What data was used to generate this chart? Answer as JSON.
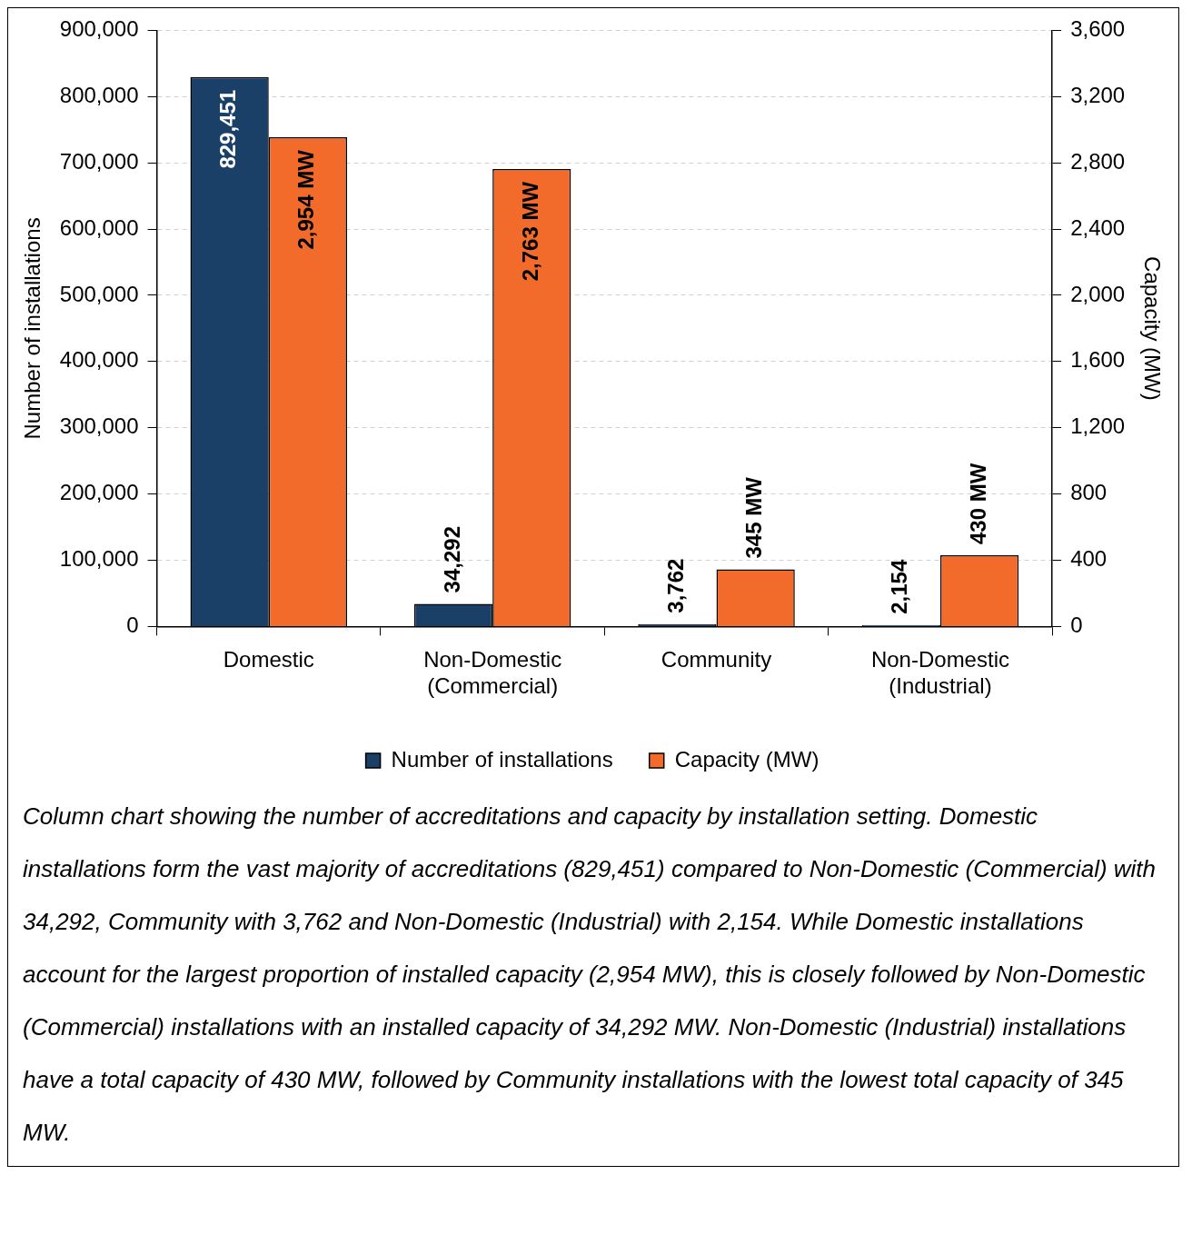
{
  "chart_data": {
    "type": "bar",
    "categories": [
      "Domestic",
      "Non-Domestic (Commercial)",
      "Community",
      "Non-Domestic (Industrial)"
    ],
    "series": [
      {
        "name": "Number of installations",
        "color": "#1a4068",
        "values": [
          829451,
          34292,
          3762,
          2154
        ],
        "value_labels": [
          "829,451",
          "34,292",
          "3,762",
          "2,154"
        ]
      },
      {
        "name": "Capacity (MW)",
        "color": "#f26b2a",
        "axis": "y2",
        "values": [
          2954,
          2763,
          345,
          430
        ],
        "value_labels": [
          "2,954 MW",
          "2,763 MW",
          "345 MW",
          "430 MW"
        ]
      }
    ],
    "ylabel": "Number of installations",
    "y2label": "Capacity (MW)",
    "ylim": [
      0,
      900000
    ],
    "yticks": [
      0,
      {
        "value": 100000,
        "label": "100,000"
      },
      {
        "value": 200000,
        "label": "200,000"
      },
      {
        "value": 300000,
        "label": "300,000"
      },
      {
        "value": 400000,
        "label": "400,000"
      },
      {
        "value": 500000,
        "label": "500,000"
      },
      {
        "value": 600000,
        "label": "600,000"
      },
      {
        "value": 700000,
        "label": "700,000"
      },
      {
        "value": 800000,
        "label": "800,000"
      },
      {
        "value": 900000,
        "label": "900,000"
      }
    ],
    "y2lim": [
      0,
      3600
    ],
    "y2ticks": [
      0,
      400,
      800,
      {
        "value": 1200,
        "label": "1,200"
      },
      {
        "value": 1600,
        "label": "1,600"
      },
      {
        "value": 2000,
        "label": "2,000"
      },
      {
        "value": 2400,
        "label": "2,400"
      },
      {
        "value": 2800,
        "label": "2,800"
      },
      {
        "value": 3200,
        "label": "3,200"
      },
      {
        "value": 3600,
        "label": "3,600"
      }
    ],
    "grid": "y",
    "legend": "bottom",
    "annotations": [
      "Column chart showing the number of accreditations and capacity by installation setting. Domestic installations form the vast majority of accreditations (829,451) compared to Non-Domestic (Commercial) with 34,292, Community with 3,762 and Non-Domestic (Industrial) with 2,154. While Domestic installations account for the largest proportion of installed capacity (2,954 MW), this is closely followed by Non-Domestic (Commercial) installations with an installed capacity of 34,292 MW. Non-Domestic (Industrial) installations have a total capacity of 430 MW, followed by Community installations with the lowest total capacity of 345 MW."
    ]
  }
}
